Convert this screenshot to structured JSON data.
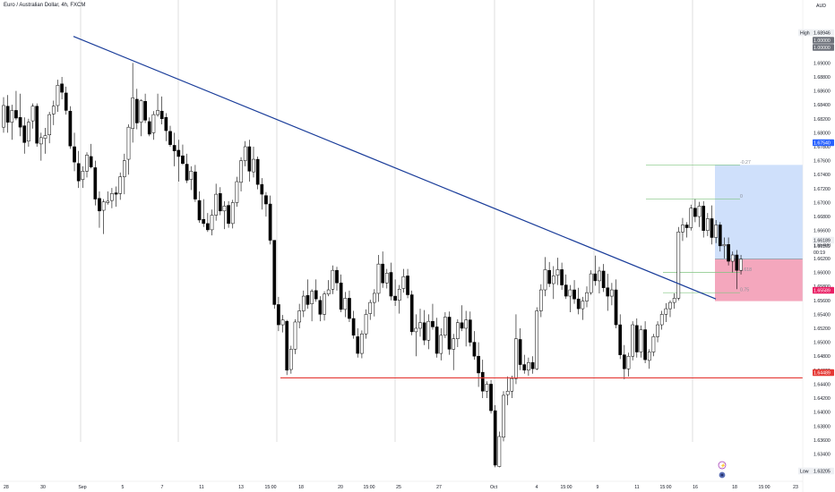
{
  "header": {
    "title": "Euro / Australian Dollar, 4h, FXCM",
    "currency": "AUD"
  },
  "colors": {
    "up_candle": "#ffffff",
    "down_candle": "#000000",
    "wick": "#000000",
    "trendline": "#1a3d9a",
    "support_line": "#e53935",
    "target_zone": "#cfe0fb",
    "stop_zone": "#f4a7bd",
    "fib_line": "#7fc57f",
    "session_line": "#c9c9c9"
  },
  "chart_data": {
    "type": "candlestick",
    "symbol": "Euro / Australian Dollar",
    "timeframe": "4h",
    "broker": "FXCM",
    "ylim": [
      1.6315,
      1.6944
    ],
    "y_ticks": [
      "1.69200",
      "1.69000",
      "1.68800",
      "1.68600",
      "1.68400",
      "1.68200",
      "1.68000",
      "1.67800",
      "1.67600",
      "1.67400",
      "1.67200",
      "1.67000",
      "1.66800",
      "1.66600",
      "1.66400",
      "1.66200",
      "1.66000",
      "1.65800",
      "1.65600",
      "1.65400",
      "1.65200",
      "1.65000",
      "1.64800",
      "1.64600",
      "1.64400",
      "1.64200",
      "1.64000",
      "1.63800",
      "1.63600",
      "1.63400"
    ],
    "x_ticks": [
      "28",
      "30",
      "Sep",
      "5",
      "7",
      "11",
      "13",
      "15:00",
      "18",
      "20",
      "15:00",
      "25",
      "27",
      "Oct",
      "4",
      "15:00",
      "9",
      "11",
      "15:00",
      "16",
      "18",
      "15:00",
      "23"
    ],
    "price_badges": [
      {
        "label": "High",
        "value": "1.68946",
        "kind": "high"
      },
      {
        "value": "1.00000",
        "kind": "gray"
      },
      {
        "value": "1.00000",
        "kind": "gray"
      },
      {
        "value": "1.67540",
        "kind": "target"
      },
      {
        "value": "1.66189",
        "kind": "last"
      },
      {
        "value": "1.66169",
        "kind": "plain"
      },
      {
        "value": "00:19",
        "kind": "plain"
      },
      {
        "value": "1.65589",
        "kind": "stop"
      },
      {
        "value": "1.64489",
        "kind": "support"
      },
      {
        "label": "Low",
        "value": "1.63205",
        "kind": "low"
      }
    ],
    "fib_levels": [
      {
        "label": "-0.27",
        "price": 1.6754
      },
      {
        "label": "0",
        "price": 1.6705
      },
      {
        "label": "0.618",
        "price": 1.66
      },
      {
        "label": "0.75",
        "price": 1.6571
      }
    ],
    "trendline": {
      "start": {
        "x": "Aug 26",
        "price": 1.6938
      },
      "end": {
        "x": "Oct 17",
        "price": 1.6562
      }
    },
    "support_level": 1.64489,
    "zones": {
      "target": [
        1.6619,
        1.6754
      ],
      "stop": [
        1.65589,
        1.6619
      ]
    },
    "candles": [
      [
        1.6808,
        1.6851,
        1.68,
        1.6839
      ],
      [
        1.6838,
        1.6854,
        1.68,
        1.6815
      ],
      [
        1.6815,
        1.684,
        1.679,
        1.6832
      ],
      [
        1.6832,
        1.686,
        1.6818,
        1.6821
      ],
      [
        1.6822,
        1.6856,
        1.6795,
        1.6808
      ],
      [
        1.681,
        1.6822,
        1.677,
        1.6786
      ],
      [
        1.6788,
        1.682,
        1.678,
        1.6815
      ],
      [
        1.6817,
        1.6842,
        1.6806,
        1.6838
      ],
      [
        1.6838,
        1.6842,
        1.678,
        1.6785
      ],
      [
        1.6784,
        1.68,
        1.676,
        1.6793
      ],
      [
        1.6792,
        1.6807,
        1.677,
        1.6796
      ],
      [
        1.6797,
        1.683,
        1.6785,
        1.6826
      ],
      [
        1.6827,
        1.6846,
        1.6811,
        1.6838
      ],
      [
        1.6839,
        1.6876,
        1.683,
        1.6868
      ],
      [
        1.687,
        1.688,
        1.6848,
        1.6858
      ],
      [
        1.6857,
        1.6866,
        1.6826,
        1.6832
      ],
      [
        1.6831,
        1.6838,
        1.6777,
        1.6781
      ],
      [
        1.678,
        1.68,
        1.6745,
        1.6758
      ],
      [
        1.6756,
        1.6774,
        1.6721,
        1.6731
      ],
      [
        1.6733,
        1.6752,
        1.6721,
        1.6745
      ],
      [
        1.6745,
        1.6772,
        1.6736,
        1.6768
      ],
      [
        1.6766,
        1.6784,
        1.6749,
        1.6751
      ],
      [
        1.675,
        1.676,
        1.6696,
        1.6705
      ],
      [
        1.6706,
        1.6716,
        1.6664,
        1.6688
      ],
      [
        1.6689,
        1.6705,
        1.6655,
        1.6701
      ],
      [
        1.67,
        1.6716,
        1.6697,
        1.6702
      ],
      [
        1.6703,
        1.6721,
        1.6692,
        1.6713
      ],
      [
        1.6714,
        1.6723,
        1.6694,
        1.6712
      ],
      [
        1.6713,
        1.6743,
        1.6704,
        1.6737
      ],
      [
        1.6737,
        1.677,
        1.6712,
        1.676
      ],
      [
        1.6762,
        1.6812,
        1.674,
        1.6808
      ],
      [
        1.6806,
        1.69,
        1.6786,
        1.685
      ],
      [
        1.6848,
        1.6863,
        1.6805,
        1.6814
      ],
      [
        1.6815,
        1.6848,
        1.6795,
        1.6846
      ],
      [
        1.6845,
        1.6856,
        1.6814,
        1.6818
      ],
      [
        1.6816,
        1.6822,
        1.6795,
        1.6798
      ],
      [
        1.68,
        1.6831,
        1.679,
        1.6826
      ],
      [
        1.6826,
        1.6856,
        1.6823,
        1.6832
      ],
      [
        1.6831,
        1.6852,
        1.6812,
        1.682
      ],
      [
        1.6822,
        1.6828,
        1.6788,
        1.6803
      ],
      [
        1.6802,
        1.681,
        1.678,
        1.6783
      ],
      [
        1.6782,
        1.68,
        1.6752,
        1.6774
      ],
      [
        1.6775,
        1.679,
        1.673,
        1.6766
      ],
      [
        1.6767,
        1.6783,
        1.6754,
        1.6756
      ],
      [
        1.6755,
        1.677,
        1.6728,
        1.6732
      ],
      [
        1.6733,
        1.6752,
        1.6718,
        1.6745
      ],
      [
        1.6744,
        1.6754,
        1.6701,
        1.6705
      ],
      [
        1.6703,
        1.6716,
        1.6671,
        1.6675
      ],
      [
        1.6676,
        1.6705,
        1.6665,
        1.667
      ],
      [
        1.667,
        1.6685,
        1.6658,
        1.6661
      ],
      [
        1.6661,
        1.669,
        1.6653,
        1.6682
      ],
      [
        1.6682,
        1.6727,
        1.6674,
        1.6712
      ],
      [
        1.6713,
        1.6722,
        1.6682,
        1.6688
      ],
      [
        1.6688,
        1.6702,
        1.6662,
        1.6695
      ],
      [
        1.6696,
        1.6702,
        1.6664,
        1.667
      ],
      [
        1.667,
        1.6704,
        1.6663,
        1.67
      ],
      [
        1.67,
        1.6737,
        1.6694,
        1.673
      ],
      [
        1.6729,
        1.6765,
        1.6716,
        1.676
      ],
      [
        1.676,
        1.6788,
        1.6752,
        1.678
      ],
      [
        1.678,
        1.679,
        1.673,
        1.6745
      ],
      [
        1.6744,
        1.678,
        1.6736,
        1.6762
      ],
      [
        1.6762,
        1.6766,
        1.6719,
        1.6726
      ],
      [
        1.6726,
        1.6735,
        1.669,
        1.6712
      ],
      [
        1.671,
        1.6715,
        1.668,
        1.6698
      ],
      [
        1.6698,
        1.671,
        1.664,
        1.6646
      ],
      [
        1.6646,
        1.6646,
        1.6548,
        1.6554
      ],
      [
        1.6554,
        1.6565,
        1.6516,
        1.6525
      ],
      [
        1.6525,
        1.6539,
        1.6514,
        1.6532
      ],
      [
        1.653,
        1.6532,
        1.6453,
        1.646
      ],
      [
        1.6461,
        1.6495,
        1.6455,
        1.649
      ],
      [
        1.649,
        1.6533,
        1.6483,
        1.6529
      ],
      [
        1.6529,
        1.6555,
        1.652,
        1.6545
      ],
      [
        1.6545,
        1.6574,
        1.6536,
        1.6566
      ],
      [
        1.6567,
        1.659,
        1.6548,
        1.6554
      ],
      [
        1.6555,
        1.6576,
        1.653,
        1.6573
      ],
      [
        1.6574,
        1.659,
        1.6558,
        1.6562
      ],
      [
        1.656,
        1.6566,
        1.653,
        1.654
      ],
      [
        1.654,
        1.6573,
        1.6531,
        1.6569
      ],
      [
        1.6569,
        1.6589,
        1.6566,
        1.6575
      ],
      [
        1.6576,
        1.661,
        1.6569,
        1.6603
      ],
      [
        1.6603,
        1.6608,
        1.6574,
        1.6585
      ],
      [
        1.6585,
        1.6597,
        1.6543,
        1.6547
      ],
      [
        1.6547,
        1.6572,
        1.6536,
        1.6563
      ],
      [
        1.6563,
        1.6574,
        1.6529,
        1.6534
      ],
      [
        1.6534,
        1.6545,
        1.6505,
        1.651
      ],
      [
        1.6508,
        1.652,
        1.6478,
        1.6484
      ],
      [
        1.6484,
        1.6517,
        1.6477,
        1.6512
      ],
      [
        1.6512,
        1.6547,
        1.6505,
        1.654
      ],
      [
        1.6541,
        1.6561,
        1.6532,
        1.6557
      ],
      [
        1.6557,
        1.6576,
        1.6537,
        1.657
      ],
      [
        1.657,
        1.6625,
        1.6558,
        1.6612
      ],
      [
        1.6612,
        1.663,
        1.6578,
        1.6585
      ],
      [
        1.6585,
        1.6605,
        1.6577,
        1.6599
      ],
      [
        1.66,
        1.6614,
        1.656,
        1.6566
      ],
      [
        1.6566,
        1.659,
        1.6552,
        1.656
      ],
      [
        1.656,
        1.6582,
        1.6541,
        1.6576
      ],
      [
        1.6577,
        1.6605,
        1.6571,
        1.6594
      ],
      [
        1.6595,
        1.6605,
        1.6563,
        1.6568
      ],
      [
        1.6568,
        1.6574,
        1.651,
        1.6515
      ],
      [
        1.6515,
        1.654,
        1.648,
        1.652
      ],
      [
        1.652,
        1.6548,
        1.6508,
        1.6528
      ],
      [
        1.6528,
        1.6546,
        1.6496,
        1.6503
      ],
      [
        1.6503,
        1.654,
        1.649,
        1.653
      ],
      [
        1.653,
        1.6555,
        1.6518,
        1.6522
      ],
      [
        1.6522,
        1.6535,
        1.6478,
        1.6484
      ],
      [
        1.6484,
        1.652,
        1.6474,
        1.651
      ],
      [
        1.651,
        1.6543,
        1.6506,
        1.6536
      ],
      [
        1.6536,
        1.6544,
        1.6482,
        1.649
      ],
      [
        1.649,
        1.6512,
        1.646,
        1.6505
      ],
      [
        1.6505,
        1.6533,
        1.6493,
        1.6528
      ],
      [
        1.6528,
        1.6553,
        1.6516,
        1.652
      ],
      [
        1.652,
        1.6545,
        1.6494,
        1.6532
      ],
      [
        1.6532,
        1.6544,
        1.6494,
        1.65
      ],
      [
        1.65,
        1.6516,
        1.6475,
        1.648
      ],
      [
        1.648,
        1.65,
        1.6436,
        1.6456
      ],
      [
        1.6457,
        1.6475,
        1.642,
        1.643
      ],
      [
        1.643,
        1.6444,
        1.642,
        1.644
      ],
      [
        1.644,
        1.6446,
        1.6398,
        1.6402
      ],
      [
        1.6402,
        1.641,
        1.6321,
        1.6324
      ],
      [
        1.6322,
        1.6372,
        1.6321,
        1.6365
      ],
      [
        1.6364,
        1.643,
        1.6358,
        1.6424
      ],
      [
        1.6425,
        1.6451,
        1.641,
        1.643
      ],
      [
        1.643,
        1.6452,
        1.642,
        1.6448
      ],
      [
        1.6448,
        1.654,
        1.644,
        1.6505
      ],
      [
        1.6504,
        1.652,
        1.646,
        1.6468
      ],
      [
        1.6468,
        1.6482,
        1.6455,
        1.646
      ],
      [
        1.646,
        1.6478,
        1.6452,
        1.6471
      ],
      [
        1.6471,
        1.648,
        1.6455,
        1.6462
      ],
      [
        1.6462,
        1.655,
        1.646,
        1.6545
      ],
      [
        1.6545,
        1.6583,
        1.6536,
        1.6575
      ],
      [
        1.6575,
        1.6622,
        1.6566,
        1.6604
      ],
      [
        1.6603,
        1.6615,
        1.6579,
        1.6584
      ],
      [
        1.6584,
        1.6609,
        1.6562,
        1.6595
      ],
      [
        1.6596,
        1.6621,
        1.6582,
        1.6604
      ],
      [
        1.6604,
        1.6614,
        1.6575,
        1.6582
      ],
      [
        1.6582,
        1.6597,
        1.6562,
        1.6566
      ],
      [
        1.6566,
        1.6582,
        1.6543,
        1.6575
      ],
      [
        1.6575,
        1.6589,
        1.6555,
        1.6562
      ],
      [
        1.6562,
        1.6578,
        1.654,
        1.6548
      ],
      [
        1.6548,
        1.6565,
        1.6532,
        1.6559
      ],
      [
        1.6559,
        1.658,
        1.655,
        1.6571
      ],
      [
        1.6571,
        1.6603,
        1.6568,
        1.6598
      ],
      [
        1.6598,
        1.6624,
        1.6581,
        1.6588
      ],
      [
        1.6588,
        1.6608,
        1.657,
        1.6602
      ],
      [
        1.6602,
        1.6612,
        1.6572,
        1.6578
      ],
      [
        1.6578,
        1.6598,
        1.6545,
        1.6566
      ],
      [
        1.6566,
        1.6585,
        1.6553,
        1.6575
      ],
      [
        1.6575,
        1.659,
        1.652,
        1.6525
      ],
      [
        1.6525,
        1.654,
        1.6476,
        1.6482
      ],
      [
        1.6482,
        1.6496,
        1.6447,
        1.6462
      ],
      [
        1.6462,
        1.6485,
        1.6451,
        1.648
      ],
      [
        1.648,
        1.653,
        1.6474,
        1.6525
      ],
      [
        1.6524,
        1.6534,
        1.6478,
        1.6486
      ],
      [
        1.6486,
        1.6524,
        1.6478,
        1.6518
      ],
      [
        1.6518,
        1.653,
        1.647,
        1.6475
      ],
      [
        1.6474,
        1.649,
        1.6462,
        1.6486
      ],
      [
        1.6486,
        1.6512,
        1.648,
        1.6508
      ],
      [
        1.6508,
        1.653,
        1.65,
        1.6525
      ],
      [
        1.6525,
        1.6545,
        1.6518,
        1.654
      ],
      [
        1.654,
        1.6556,
        1.6529,
        1.6548
      ],
      [
        1.6548,
        1.656,
        1.6536,
        1.6557
      ],
      [
        1.6557,
        1.657,
        1.6548,
        1.6563
      ],
      [
        1.6563,
        1.6665,
        1.656,
        1.6658
      ],
      [
        1.6658,
        1.6678,
        1.6645,
        1.6668
      ],
      [
        1.6668,
        1.6672,
        1.665,
        1.6664
      ],
      [
        1.6664,
        1.6697,
        1.666,
        1.6692
      ],
      [
        1.6692,
        1.6705,
        1.6672,
        1.668
      ],
      [
        1.668,
        1.6701,
        1.6665,
        1.6695
      ],
      [
        1.6695,
        1.6702,
        1.665,
        1.666
      ],
      [
        1.666,
        1.6685,
        1.6652,
        1.6677
      ],
      [
        1.6677,
        1.6696,
        1.664,
        1.665
      ],
      [
        1.665,
        1.6675,
        1.6642,
        1.6668
      ],
      [
        1.6668,
        1.6672,
        1.663,
        1.6638
      ],
      [
        1.6638,
        1.665,
        1.662,
        1.664
      ],
      [
        1.664,
        1.665,
        1.661,
        1.6616
      ],
      [
        1.6616,
        1.663,
        1.66,
        1.6625
      ],
      [
        1.6625,
        1.6632,
        1.6576,
        1.6603
      ],
      [
        1.6603,
        1.6625,
        1.6597,
        1.6619
      ]
    ]
  }
}
